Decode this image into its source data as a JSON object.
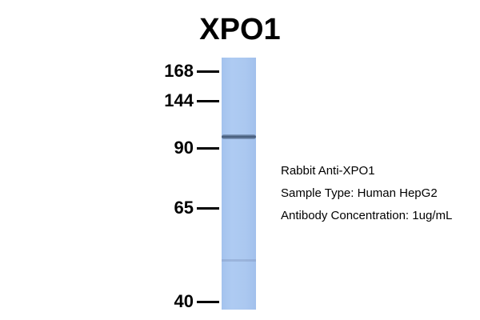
{
  "title": "XPO1",
  "markers": [
    {
      "label": "168"
    },
    {
      "label": "144"
    },
    {
      "label": "90"
    },
    {
      "label": "65"
    },
    {
      "label": "40"
    }
  ],
  "lane_color": "#abc8f0",
  "band_color": "#3e5472",
  "info": {
    "antibody": "Rabbit Anti-XPO1",
    "sample": "Sample Type: Human HepG2",
    "concentration": "Antibody Concentration: 1ug/mL"
  }
}
